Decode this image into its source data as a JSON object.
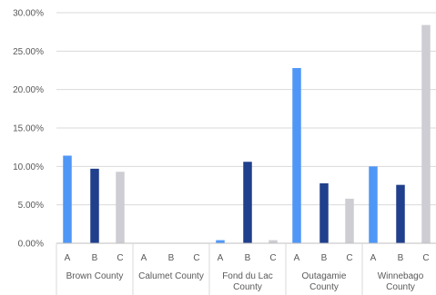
{
  "chart_data": {
    "type": "bar",
    "title": "",
    "xlabel": "",
    "ylabel": "",
    "ylim": [
      0,
      0.3
    ],
    "y_ticks": [
      0,
      0.05,
      0.1,
      0.15,
      0.2,
      0.25,
      0.3
    ],
    "y_tick_labels": [
      "0.00%",
      "5.00%",
      "10.00%",
      "15.00%",
      "20.00%",
      "25.00%",
      "30.00%"
    ],
    "grid": true,
    "legend": "none",
    "subcategories": [
      "A",
      "B",
      "C"
    ],
    "groups": [
      {
        "name": "Brown County",
        "name_lines": [
          "Brown County"
        ],
        "values": [
          0.114,
          0.097,
          0.093
        ]
      },
      {
        "name": "Calumet County",
        "name_lines": [
          "Calumet County"
        ],
        "values": [
          0.0,
          0.0,
          0.0
        ]
      },
      {
        "name": "Fond du Lac County",
        "name_lines": [
          "Fond du Lac",
          "County"
        ],
        "values": [
          0.004,
          0.106,
          0.004
        ]
      },
      {
        "name": "Outagamie County",
        "name_lines": [
          "Outagamie",
          "County"
        ],
        "values": [
          0.228,
          0.078,
          0.058
        ]
      },
      {
        "name": "Winnebago County",
        "name_lines": [
          "Winnebago",
          "County"
        ],
        "values": [
          0.1,
          0.076,
          0.284
        ]
      }
    ],
    "colors": [
      "#4f97f7",
      "#203f8c",
      "#cdcdd3"
    ]
  }
}
